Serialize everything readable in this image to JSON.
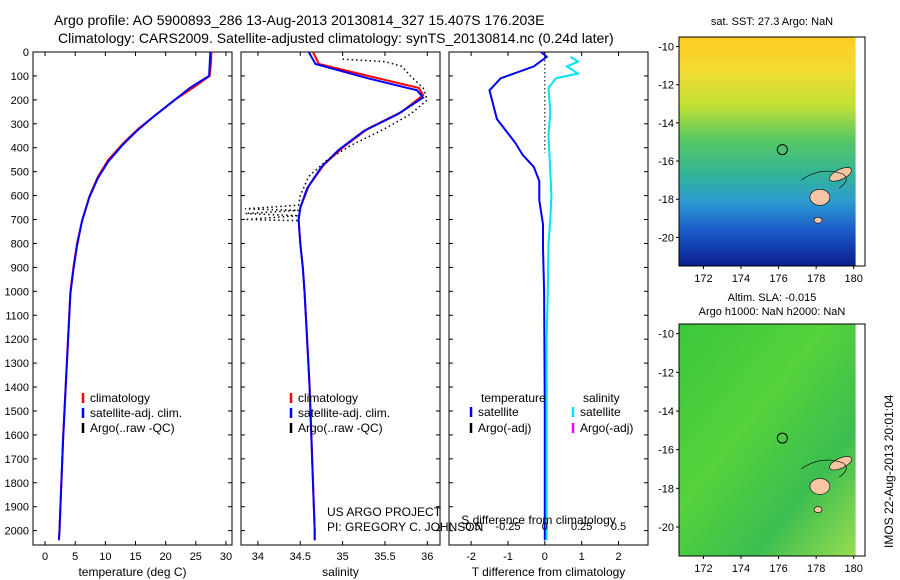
{
  "titles": {
    "line1": "Argo profile: AO 5900893_286 13-Aug-2013 20130814_327 15.407S 176.203E",
    "line2": "Climatology: CARS2009. Satellite-adjusted climatology: synTS_20130814.nc (0.24d later)"
  },
  "project_text": {
    "line1": "US ARGO PROJECT",
    "line2": "PI: GREGORY C. JOHNSON"
  },
  "side_stamp": "IMOS 22-Aug-2013 20:01:04",
  "map_titles": {
    "top": "sat. SST: 27.3 Argo: NaN",
    "bottom_line1": "Altim. SLA: -0.015",
    "bottom_line2": "Argo h1000: NaN h2000: NaN"
  },
  "colors": {
    "climatology": "#ff0000",
    "satellite": "#0000ff",
    "argo": "#000000",
    "sat_salinity": "#00e5ee",
    "argo_salinity": "#ff00ff"
  },
  "chart_data": [
    {
      "type": "line",
      "id": "temperature",
      "xlabel": "temperature (deg C)",
      "xlim": [
        -2,
        31
      ],
      "xticks": [
        0,
        5,
        10,
        15,
        20,
        25,
        30
      ],
      "ylim": [
        2060,
        0
      ],
      "yticks": [
        0,
        100,
        200,
        300,
        400,
        500,
        600,
        700,
        800,
        900,
        1000,
        1100,
        1200,
        1300,
        1400,
        1500,
        1600,
        1700,
        1800,
        1900,
        2000
      ],
      "legend": [
        "climatology",
        "satellite-adj. clim.",
        "Argo(..raw -QC)"
      ],
      "series": [
        {
          "name": "climatology",
          "color": "#ff0000",
          "points": [
            [
              27.6,
              0
            ],
            [
              27.5,
              50
            ],
            [
              27.3,
              100
            ],
            [
              24.5,
              150
            ],
            [
              21.5,
              200
            ],
            [
              18.5,
              260
            ],
            [
              15.5,
              320
            ],
            [
              13,
              380
            ],
            [
              10.5,
              450
            ],
            [
              8.8,
              520
            ],
            [
              7.4,
              600
            ],
            [
              6.2,
              700
            ],
            [
              5.3,
              800
            ],
            [
              4.7,
              900
            ],
            [
              4.2,
              1000
            ],
            [
              3.8,
              1200
            ],
            [
              3.4,
              1400
            ],
            [
              3.0,
              1600
            ],
            [
              2.7,
              1800
            ],
            [
              2.4,
              2000
            ],
            [
              2.3,
              2040
            ]
          ]
        },
        {
          "name": "satellite-adj. clim.",
          "color": "#0000ff",
          "points": [
            [
              27.4,
              0
            ],
            [
              27.3,
              50
            ],
            [
              27.2,
              100
            ],
            [
              24,
              150
            ],
            [
              21,
              210
            ],
            [
              18,
              270
            ],
            [
              15.2,
              330
            ],
            [
              12.8,
              390
            ],
            [
              10.4,
              460
            ],
            [
              8.7,
              530
            ],
            [
              7.3,
              610
            ],
            [
              6.1,
              710
            ],
            [
              5.3,
              810
            ],
            [
              4.7,
              910
            ],
            [
              4.2,
              1010
            ],
            [
              3.8,
              1210
            ],
            [
              3.4,
              1410
            ],
            [
              3.0,
              1610
            ],
            [
              2.7,
              1810
            ],
            [
              2.4,
              2000
            ],
            [
              2.3,
              2040
            ]
          ]
        }
      ]
    },
    {
      "type": "line",
      "id": "salinity",
      "xlabel": "salinity",
      "xlim": [
        33.8,
        36.15
      ],
      "xticks": [
        34,
        34.5,
        35,
        35.5,
        36
      ],
      "ylim": [
        2060,
        0
      ],
      "legend": [
        "climatology",
        "satellite-adj. clim.",
        "Argo(..raw -QC)"
      ],
      "series": [
        {
          "name": "climatology",
          "color": "#ff0000",
          "points": [
            [
              34.65,
              0
            ],
            [
              34.72,
              50
            ],
            [
              35.3,
              100
            ],
            [
              35.9,
              150
            ],
            [
              35.95,
              180
            ],
            [
              35.7,
              250
            ],
            [
              35.3,
              320
            ],
            [
              35.0,
              400
            ],
            [
              34.78,
              470
            ],
            [
              34.6,
              560
            ],
            [
              34.5,
              650
            ],
            [
              34.48,
              700
            ],
            [
              34.5,
              800
            ],
            [
              34.53,
              900
            ],
            [
              34.55,
              1000
            ],
            [
              34.58,
              1200
            ],
            [
              34.61,
              1400
            ],
            [
              34.63,
              1600
            ],
            [
              34.65,
              1800
            ],
            [
              34.67,
              2000
            ],
            [
              34.67,
              2040
            ]
          ]
        },
        {
          "name": "satellite-adj. clim.",
          "color": "#0000ff",
          "points": [
            [
              34.6,
              0
            ],
            [
              34.68,
              50
            ],
            [
              35.3,
              110
            ],
            [
              35.88,
              160
            ],
            [
              35.95,
              190
            ],
            [
              35.65,
              260
            ],
            [
              35.25,
              330
            ],
            [
              34.95,
              410
            ],
            [
              34.75,
              480
            ],
            [
              34.58,
              570
            ],
            [
              34.5,
              650
            ],
            [
              34.48,
              700
            ],
            [
              34.5,
              800
            ],
            [
              34.53,
              900
            ],
            [
              34.55,
              1000
            ],
            [
              34.58,
              1200
            ],
            [
              34.61,
              1400
            ],
            [
              34.63,
              1600
            ],
            [
              34.65,
              1800
            ],
            [
              34.67,
              2000
            ],
            [
              34.67,
              2040
            ]
          ]
        },
        {
          "name": "Argo(..raw -QC)",
          "color": "#000000",
          "dotted": true,
          "points": [
            [
              35.0,
              30
            ],
            [
              35.5,
              40
            ],
            [
              35.7,
              60
            ],
            [
              35.8,
              100
            ],
            [
              35.95,
              150
            ],
            [
              36.0,
              200
            ],
            [
              35.8,
              260
            ],
            [
              35.5,
              320
            ],
            [
              35.1,
              390
            ],
            [
              34.82,
              450
            ],
            [
              34.6,
              520
            ],
            [
              34.5,
              600
            ],
            [
              34.48,
              640
            ],
            [
              33.85,
              655
            ],
            [
              34.48,
              662
            ],
            [
              33.85,
              675
            ],
            [
              34.48,
              684
            ],
            [
              33.85,
              700
            ],
            [
              34.48,
              705
            ]
          ]
        }
      ]
    },
    {
      "type": "line",
      "id": "difference",
      "xlabel": "T difference from climatology",
      "xlabel_top": "S difference from climatology",
      "xlim": [
        -2.6,
        2.8
      ],
      "xticks": [
        -2,
        -1,
        0,
        1,
        2
      ],
      "xticks_top": [
        "-0.5",
        "-0.25",
        "0",
        "0.25",
        "0.5"
      ],
      "ylim": [
        2060,
        0
      ],
      "legend_titles": [
        "temperature",
        "salinity"
      ],
      "legend": [
        "satellite",
        "Argo(-adj)",
        "satellite",
        "Argo(-adj)"
      ],
      "series": [
        {
          "name": "satellite",
          "color": "#0000ff",
          "points": [
            [
              -0.1,
              0
            ],
            [
              0.05,
              20
            ],
            [
              -0.3,
              60
            ],
            [
              -1.2,
              110
            ],
            [
              -1.5,
              160
            ],
            [
              -1.4,
              220
            ],
            [
              -1.3,
              280
            ],
            [
              -1.0,
              340
            ],
            [
              -0.8,
              380
            ],
            [
              -0.6,
              430
            ],
            [
              -0.3,
              480
            ],
            [
              -0.15,
              540
            ],
            [
              -0.15,
              620
            ],
            [
              -0.05,
              720
            ],
            [
              -0.05,
              820
            ],
            [
              -0.02,
              1000
            ],
            [
              0,
              1500
            ],
            [
              0,
              2040
            ]
          ]
        },
        {
          "name": "satellite",
          "color": "#00e5ee",
          "points": [
            [
              0.7,
              20
            ],
            [
              0.9,
              40
            ],
            [
              0.6,
              60
            ],
            [
              0.9,
              90
            ],
            [
              0.3,
              110
            ],
            [
              0.1,
              150
            ],
            [
              0.15,
              250
            ],
            [
              0.1,
              350
            ],
            [
              0.15,
              500
            ],
            [
              0.18,
              600
            ],
            [
              0.15,
              700
            ],
            [
              0.1,
              800
            ],
            [
              0.08,
              1000
            ],
            [
              0.05,
              1200
            ],
            [
              0.05,
              1500
            ],
            [
              0.05,
              2040
            ]
          ]
        }
      ],
      "argo_dotted": [
        [
          0,
          0
        ],
        [
          0,
          420
        ]
      ]
    }
  ],
  "maps": {
    "top": {
      "yticks": [
        -10,
        -12,
        -14,
        -16,
        -18,
        -20
      ],
      "xticks": [
        172,
        174,
        176,
        178,
        180
      ],
      "ylim": [
        -21.5,
        -9.5
      ],
      "xlim": [
        170.7,
        180.6
      ],
      "argo_lon": 176.2,
      "argo_lat": -15.4
    },
    "bottom": {
      "yticks": [
        -10,
        -12,
        -14,
        -16,
        -18,
        -20
      ],
      "xticks": [
        172,
        174,
        176,
        178,
        180
      ],
      "ylim": [
        -21.5,
        -9.5
      ],
      "xlim": [
        170.7,
        180.6
      ],
      "argo_lon": 176.2,
      "argo_lat": -15.4
    }
  }
}
